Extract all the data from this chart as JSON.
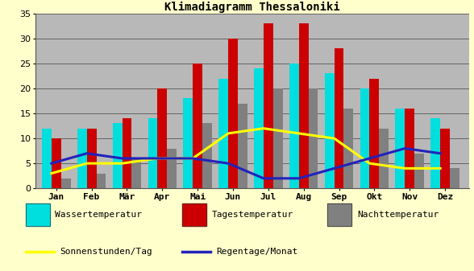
{
  "title": "Klimadiagramm Thessaloniki",
  "months": [
    "Jan",
    "Feb",
    "Mär",
    "Apr",
    "Mai",
    "Jun",
    "Jul",
    "Aug",
    "Sep",
    "Okt",
    "Nov",
    "Dez"
  ],
  "wassertemperatur": [
    12,
    12,
    13,
    14,
    18,
    22,
    24,
    25,
    23,
    20,
    16,
    14
  ],
  "tagestemperatur": [
    10,
    12,
    14,
    20,
    25,
    30,
    33,
    33,
    28,
    22,
    16,
    12
  ],
  "nachttemperatur": [
    2,
    3,
    6,
    8,
    13,
    17,
    20,
    20,
    16,
    12,
    7,
    4
  ],
  "sonnenstunden": [
    3,
    5,
    5,
    6,
    6,
    11,
    12,
    11,
    10,
    5,
    4,
    4
  ],
  "regentage": [
    5,
    7,
    6,
    6,
    6,
    5,
    2,
    2,
    4,
    6,
    8,
    7
  ],
  "color_wasser": "#00dede",
  "color_tages": "#cc0000",
  "color_nacht": "#808080",
  "color_sonnen": "#ffff00",
  "color_regen": "#2222bb",
  "bar_width": 0.27,
  "ylim": [
    0,
    35
  ],
  "yticks": [
    0,
    5,
    10,
    15,
    20,
    25,
    30,
    35
  ],
  "background_outer": "#ffffcc",
  "background_plot": "#b8b8b8",
  "title_fontsize": 10,
  "tick_fontsize": 8,
  "legend_fontsize": 8
}
